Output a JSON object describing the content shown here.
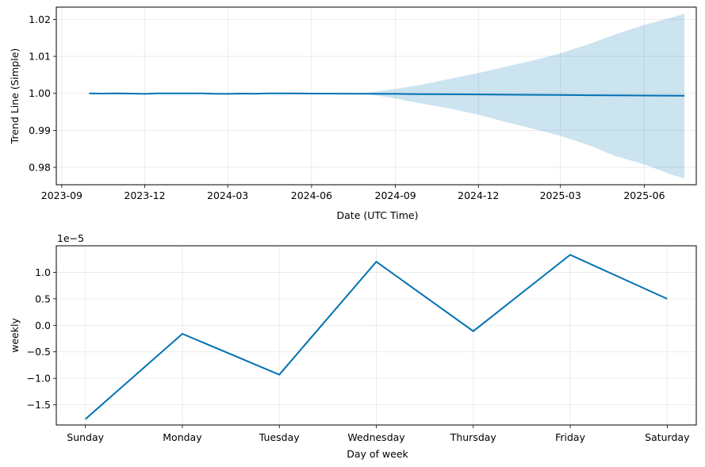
{
  "chart_data": [
    {
      "type": "line",
      "xlabel": "Date (UTC Time)",
      "ylabel": "Trend Line (Simple)",
      "x_is_date": true,
      "xlim": [
        "2023-08-26",
        "2025-07-28"
      ],
      "ylim": [
        0.9753,
        1.0233
      ],
      "xticks": [
        "2023-09",
        "2023-12",
        "2024-03",
        "2024-06",
        "2024-09",
        "2024-12",
        "2025-03",
        "2025-06"
      ],
      "yticks": [
        0.98,
        0.99,
        1.0,
        1.01,
        1.02
      ],
      "ytick_labels": [
        "0.98",
        "0.99",
        "1.00",
        "1.01",
        "1.02"
      ],
      "grid": true,
      "line_color": "#0072B2",
      "band_color": "#0072B2",
      "series": [
        {
          "x": [
            "2023-10-01",
            "2023-10-15",
            "2023-11-01",
            "2023-11-15",
            "2023-12-01",
            "2023-12-15",
            "2024-01-01",
            "2024-02-01",
            "2024-02-15",
            "2024-03-01",
            "2024-03-15",
            "2024-04-01",
            "2024-04-15",
            "2024-05-01",
            "2024-06-01",
            "2024-07-01",
            "2024-08-01",
            "2024-09-01",
            "2024-10-01",
            "2024-11-01",
            "2024-12-01",
            "2025-01-01",
            "2025-02-01",
            "2025-03-01",
            "2025-04-01",
            "2025-05-01",
            "2025-06-01",
            "2025-07-15"
          ],
          "values": [
            1.0,
            0.99995,
            1.0,
            0.99995,
            0.99985,
            1.0,
            1.0,
            1.0,
            0.9999,
            0.99985,
            0.99995,
            0.9999,
            1.0,
            1.0,
            0.99995,
            0.99992,
            0.9999,
            0.99985,
            0.9998,
            0.99975,
            0.9997,
            0.99965,
            0.9996,
            0.99955,
            0.9995,
            0.99945,
            0.9994,
            0.99935
          ]
        }
      ],
      "band": {
        "x": [
          "2024-07-25",
          "2024-08-15",
          "2024-09-01",
          "2024-10-01",
          "2024-11-01",
          "2024-12-01",
          "2025-01-01",
          "2025-02-01",
          "2025-03-01",
          "2025-04-01",
          "2025-05-01",
          "2025-06-01",
          "2025-07-01",
          "2025-07-15"
        ],
        "lower": [
          0.9999,
          0.9993,
          0.9986,
          0.9972,
          0.9958,
          0.9942,
          0.9922,
          0.9903,
          0.9885,
          0.986,
          0.983,
          0.9808,
          0.978,
          0.977
        ],
        "upper": [
          1.0,
          1.0006,
          1.0012,
          1.0024,
          1.004,
          1.0055,
          1.0073,
          1.009,
          1.0108,
          1.0133,
          1.016,
          1.0185,
          1.0205,
          1.0215
        ]
      }
    },
    {
      "type": "line",
      "xlabel": "Day of week",
      "ylabel": "weekly",
      "y_offset_text": "1e−5",
      "categories": [
        "Sunday",
        "Monday",
        "Tuesday",
        "Wednesday",
        "Thursday",
        "Friday",
        "Saturday"
      ],
      "xlim": [
        -0.3,
        6.3
      ],
      "ylim": [
        -1.88,
        1.5
      ],
      "yticks": [
        -1.5,
        -1.0,
        -0.5,
        0.0,
        0.5,
        1.0
      ],
      "ytick_labels": [
        "−1.5",
        "−1.0",
        "−0.5",
        "0.0",
        "0.5",
        "1.0"
      ],
      "grid": true,
      "line_color": "#0072B2",
      "series": [
        {
          "values": [
            -1.77,
            -0.16,
            -0.93,
            1.2,
            -0.11,
            1.33,
            0.5
          ]
        }
      ]
    }
  ]
}
